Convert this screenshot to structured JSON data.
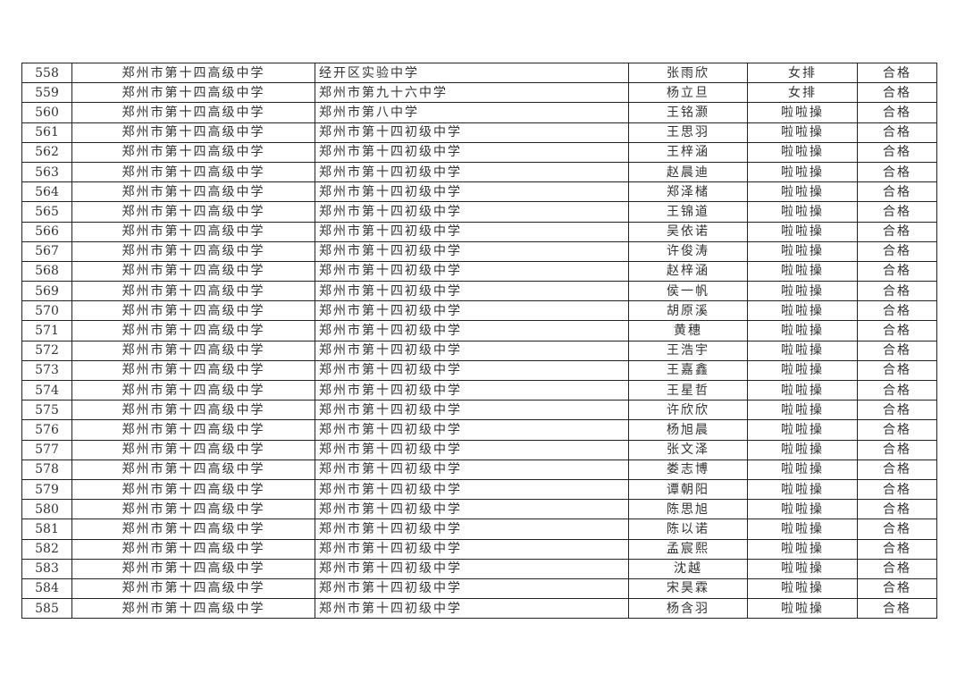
{
  "table": {
    "rows": [
      [
        "558",
        "郑州市第十四高级中学",
        "经开区实验中学",
        "张雨欣",
        "女排",
        "合格"
      ],
      [
        "559",
        "郑州市第十四高级中学",
        "郑州市第九十六中学",
        "杨立旦",
        "女排",
        "合格"
      ],
      [
        "560",
        "郑州市第十四高级中学",
        "郑州市第八中学",
        "王铭灏",
        "啦啦操",
        "合格"
      ],
      [
        "561",
        "郑州市第十四高级中学",
        "郑州市第十四初级中学",
        "王思羽",
        "啦啦操",
        "合格"
      ],
      [
        "562",
        "郑州市第十四高级中学",
        "郑州市第十四初级中学",
        "王梓涵",
        "啦啦操",
        "合格"
      ],
      [
        "563",
        "郑州市第十四高级中学",
        "郑州市第十四初级中学",
        "赵晨迪",
        "啦啦操",
        "合格"
      ],
      [
        "564",
        "郑州市第十四高级中学",
        "郑州市第十四初级中学",
        "郑泽槠",
        "啦啦操",
        "合格"
      ],
      [
        "565",
        "郑州市第十四高级中学",
        "郑州市第十四初级中学",
        "王锦道",
        "啦啦操",
        "合格"
      ],
      [
        "566",
        "郑州市第十四高级中学",
        "郑州市第十四初级中学",
        "吴依诺",
        "啦啦操",
        "合格"
      ],
      [
        "567",
        "郑州市第十四高级中学",
        "郑州市第十四初级中学",
        "许俊涛",
        "啦啦操",
        "合格"
      ],
      [
        "568",
        "郑州市第十四高级中学",
        "郑州市第十四初级中学",
        "赵梓涵",
        "啦啦操",
        "合格"
      ],
      [
        "569",
        "郑州市第十四高级中学",
        "郑州市第十四初级中学",
        "侯一帆",
        "啦啦操",
        "合格"
      ],
      [
        "570",
        "郑州市第十四高级中学",
        "郑州市第十四初级中学",
        "胡原溪",
        "啦啦操",
        "合格"
      ],
      [
        "571",
        "郑州市第十四高级中学",
        "郑州市第十四初级中学",
        "黄穗",
        "啦啦操",
        "合格"
      ],
      [
        "572",
        "郑州市第十四高级中学",
        "郑州市第十四初级中学",
        "王浩宇",
        "啦啦操",
        "合格"
      ],
      [
        "573",
        "郑州市第十四高级中学",
        "郑州市第十四初级中学",
        "王嘉鑫",
        "啦啦操",
        "合格"
      ],
      [
        "574",
        "郑州市第十四高级中学",
        "郑州市第十四初级中学",
        "王星哲",
        "啦啦操",
        "合格"
      ],
      [
        "575",
        "郑州市第十四高级中学",
        "郑州市第十四初级中学",
        "许欣欣",
        "啦啦操",
        "合格"
      ],
      [
        "576",
        "郑州市第十四高级中学",
        "郑州市第十四初级中学",
        "杨旭晨",
        "啦啦操",
        "合格"
      ],
      [
        "577",
        "郑州市第十四高级中学",
        "郑州市第十四初级中学",
        "张文泽",
        "啦啦操",
        "合格"
      ],
      [
        "578",
        "郑州市第十四高级中学",
        "郑州市第十四初级中学",
        "娄志博",
        "啦啦操",
        "合格"
      ],
      [
        "579",
        "郑州市第十四高级中学",
        "郑州市第十四初级中学",
        "谭朝阳",
        "啦啦操",
        "合格"
      ],
      [
        "580",
        "郑州市第十四高级中学",
        "郑州市第十四初级中学",
        "陈思旭",
        "啦啦操",
        "合格"
      ],
      [
        "581",
        "郑州市第十四高级中学",
        "郑州市第十四初级中学",
        "陈以诺",
        "啦啦操",
        "合格"
      ],
      [
        "582",
        "郑州市第十四高级中学",
        "郑州市第十四初级中学",
        "孟宸熙",
        "啦啦操",
        "合格"
      ],
      [
        "583",
        "郑州市第十四高级中学",
        "郑州市第十四初级中学",
        "沈越",
        "啦啦操",
        "合格"
      ],
      [
        "584",
        "郑州市第十四高级中学",
        "郑州市第十四初级中学",
        "宋昊霖",
        "啦啦操",
        "合格"
      ],
      [
        "585",
        "郑州市第十四高级中学",
        "郑州市第十四初级中学",
        "杨含羽",
        "啦啦操",
        "合格"
      ]
    ]
  }
}
